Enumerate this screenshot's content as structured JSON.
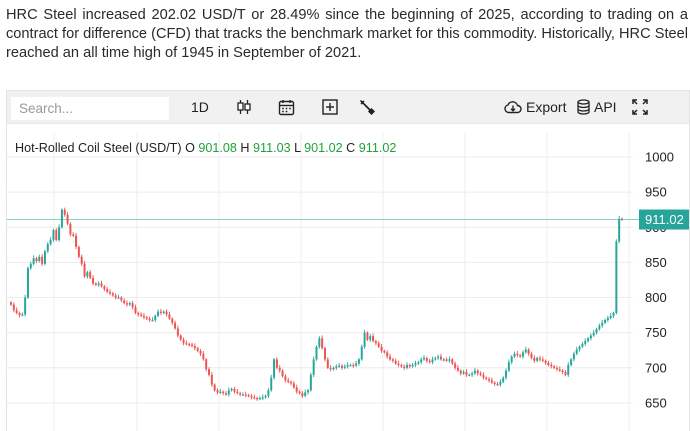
{
  "intro_text": "HRC Steel increased 202.02 USD/T or 28.49% since the beginning of 2025, according to trading on a contract for difference (CFD) that tracks the benchmark market for this commodity. Historically, HRC Steel reached an all time high of 1945 in September of 2021.",
  "toolbar": {
    "search_placeholder": "Search...",
    "timeframe_label": "1D",
    "export_label": "Export",
    "api_label": "API",
    "icons": [
      "candlestick-icon",
      "calendar-icon",
      "add-indicator-icon",
      "settings-wrench-icon",
      "cloud-download-icon",
      "database-icon",
      "fullscreen-icon"
    ]
  },
  "legend": {
    "symbol": "Hot-Rolled Coil Steel (USD/T)",
    "o_label": "O",
    "o_value": "901.08",
    "h_label": "H",
    "h_value": "911.03",
    "l_label": "L",
    "l_value": "901.02",
    "c_label": "C",
    "c_value": "911.02"
  },
  "colors": {
    "up": "#26a69a",
    "down": "#ef5350",
    "last_price_bg": "#26a69a",
    "legend_value": "#1fa338"
  },
  "chart_data": {
    "type": "candlestick",
    "title": "Hot-Rolled Coil Steel (USD/T)",
    "y_ticks": [
      "1000",
      "950",
      "900",
      "850",
      "800",
      "750",
      "700",
      "650"
    ],
    "ylim": [
      635,
      1015
    ],
    "grid": true,
    "last_price": "911.02",
    "closes": [
      790,
      782,
      778,
      775,
      776,
      800,
      842,
      848,
      856,
      852,
      858,
      848,
      866,
      876,
      882,
      896,
      882,
      900,
      925,
      918,
      905,
      890,
      888,
      872,
      858,
      848,
      830,
      836,
      828,
      820,
      818,
      820,
      816,
      812,
      808,
      806,
      803,
      800,
      800,
      796,
      792,
      790,
      792,
      786,
      778,
      776,
      774,
      772,
      770,
      768,
      768,
      774,
      780,
      778,
      780,
      776,
      770,
      764,
      756,
      746,
      740,
      735,
      734,
      733,
      731,
      728,
      724,
      720,
      712,
      698,
      690,
      676,
      668,
      665,
      666,
      664,
      662,
      668,
      670,
      666,
      664,
      662,
      662,
      661,
      660,
      658,
      657,
      656,
      657,
      658,
      660,
      668,
      686,
      712,
      700,
      696,
      688,
      682,
      680,
      678,
      672,
      666,
      664,
      660,
      665,
      668,
      690,
      712,
      730,
      742,
      728,
      712,
      700,
      698,
      700,
      702,
      703,
      700,
      702,
      704,
      704,
      703,
      706,
      712,
      730,
      750,
      740,
      745,
      738,
      735,
      730,
      724,
      722,
      716,
      712,
      710,
      706,
      704,
      702,
      700,
      704,
      702,
      704,
      706,
      708,
      712,
      714,
      710,
      708,
      712,
      714,
      716,
      712,
      712,
      710,
      712,
      706,
      700,
      696,
      692,
      694,
      690,
      690,
      692,
      696,
      692,
      690,
      686,
      684,
      682,
      679,
      677,
      676,
      680,
      686,
      696,
      708,
      716,
      720,
      718,
      716,
      722,
      726,
      720,
      714,
      710,
      714,
      712,
      710,
      707,
      704,
      702,
      700,
      698,
      696,
      694,
      690,
      704,
      712,
      720,
      726,
      730,
      734,
      738,
      742,
      746,
      750,
      755,
      760,
      764,
      768,
      771,
      774,
      778,
      880,
      912,
      911.02
    ]
  }
}
